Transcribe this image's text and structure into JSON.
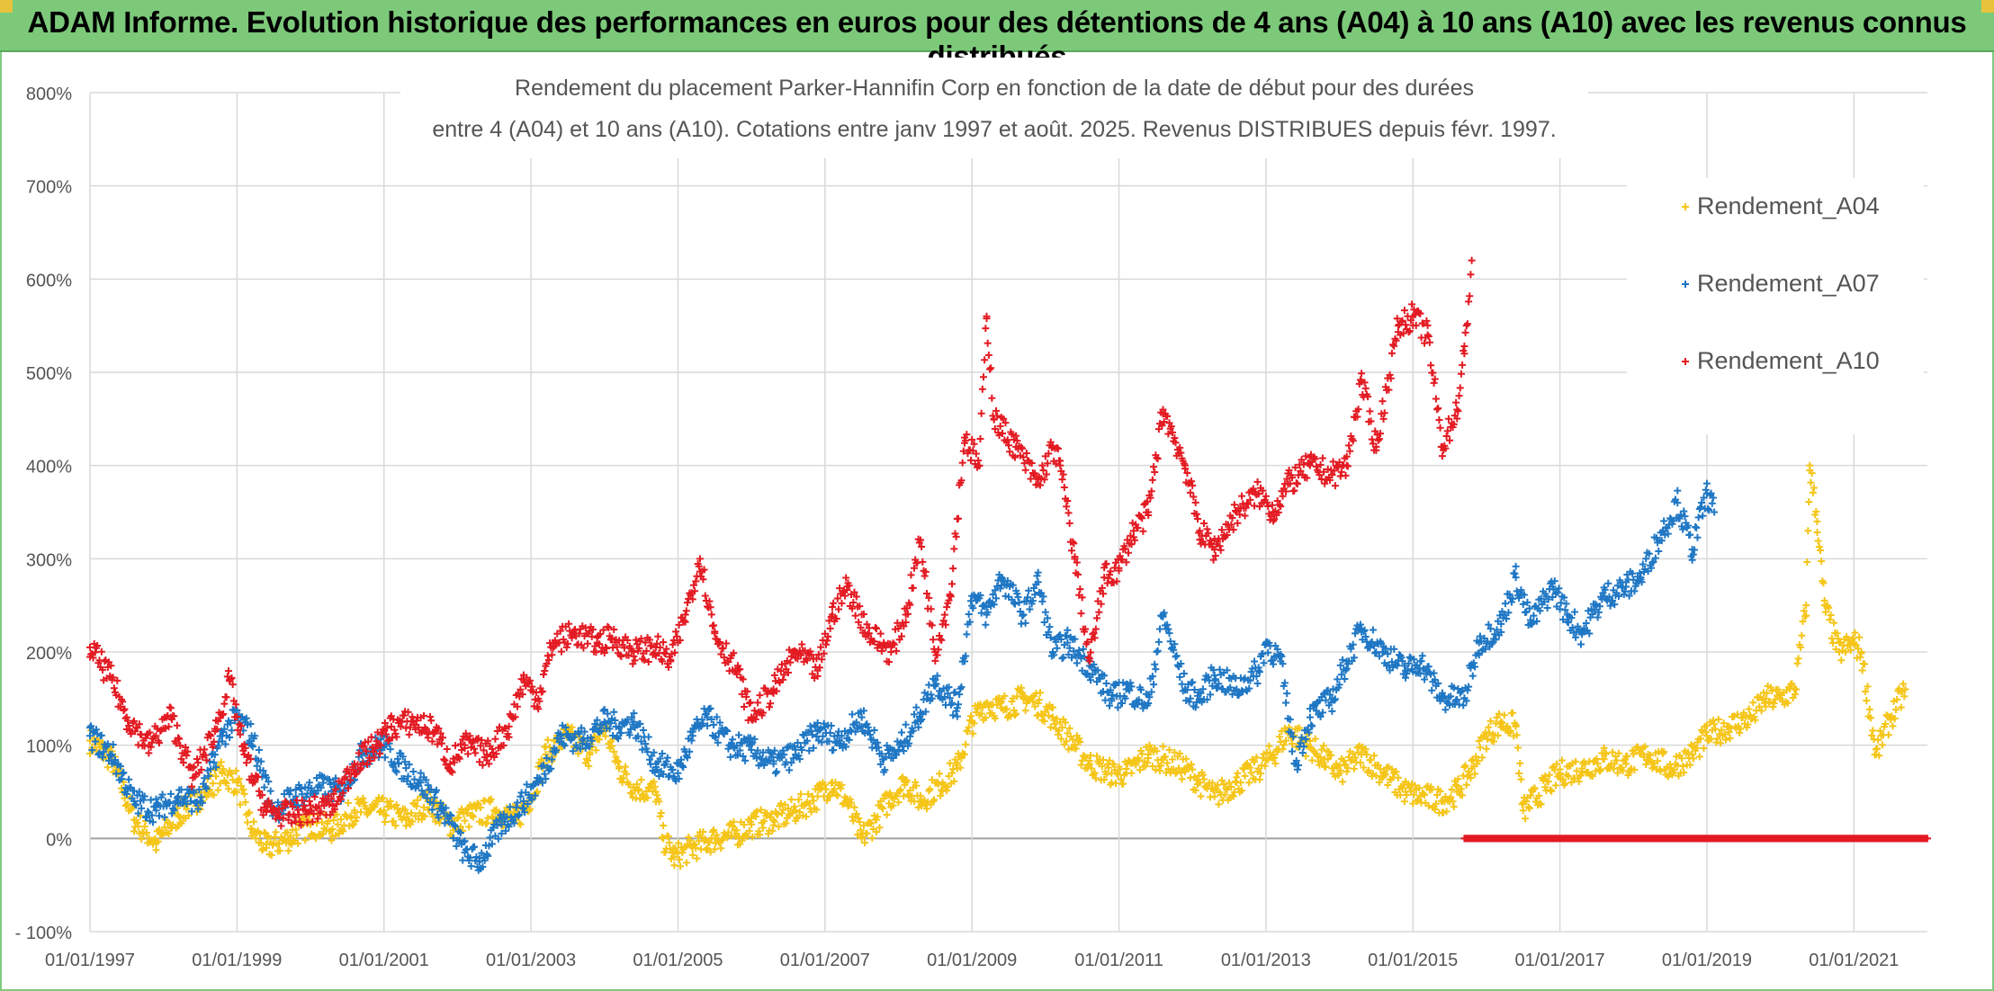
{
  "banner": {
    "title": "ADAM Informe. Evolution historique des performances en euros pour des détentions de 4 ans (A04) à 10 ans (A10) avec les revenus connus distribués"
  },
  "chart_data": {
    "type": "scatter",
    "title_line1": "Rendement du placement Parker-Hannifin Corp en fonction de la date de début pour des durées",
    "title_line2": "entre 4 (A04) et 10 ans (A10). Cotations entre janv 1997 et août. 2025. Revenus DISTRIBUES depuis févr. 1997.",
    "xlabel": "",
    "ylabel": "",
    "x_ticks": [
      "01/01/1997",
      "01/01/1999",
      "01/01/2001",
      "01/01/2003",
      "01/01/2005",
      "01/01/2007",
      "01/01/2009",
      "01/01/2011",
      "01/01/2013",
      "01/01/2015",
      "01/01/2017",
      "01/01/2019",
      "01/01/2021"
    ],
    "y_ticks": [
      "800%",
      "700%",
      "600%",
      "500%",
      "400%",
      "300%",
      "200%",
      "100%",
      "0%",
      "- 100%"
    ],
    "xlim": [
      1997.0,
      2022.0
    ],
    "ylim": [
      -100,
      800
    ],
    "grid": true,
    "legend_position": "top-right",
    "marker": "+",
    "series": [
      {
        "name": "Rendement_A04",
        "color": "#f5c518",
        "points": [
          [
            1997.0,
            105
          ],
          [
            1997.3,
            85
          ],
          [
            1997.6,
            20
          ],
          [
            1997.9,
            -5
          ],
          [
            1998.2,
            25
          ],
          [
            1998.5,
            45
          ],
          [
            1998.8,
            70
          ],
          [
            1999.0,
            60
          ],
          [
            1999.2,
            10
          ],
          [
            1999.4,
            -10
          ],
          [
            1999.7,
            0
          ],
          [
            2000.0,
            15
          ],
          [
            2000.3,
            10
          ],
          [
            2000.6,
            30
          ],
          [
            2001.0,
            30
          ],
          [
            2001.3,
            20
          ],
          [
            2001.6,
            40
          ],
          [
            2001.9,
            15
          ],
          [
            2002.2,
            25
          ],
          [
            2002.5,
            30
          ],
          [
            2002.8,
            20
          ],
          [
            2003.0,
            45
          ],
          [
            2003.2,
            90
          ],
          [
            2003.5,
            110
          ],
          [
            2003.8,
            90
          ],
          [
            2004.0,
            120
          ],
          [
            2004.2,
            75
          ],
          [
            2004.4,
            55
          ],
          [
            2004.7,
            50
          ],
          [
            2004.8,
            0
          ],
          [
            2004.95,
            -20
          ],
          [
            2005.2,
            -10
          ],
          [
            2005.5,
            0
          ],
          [
            2005.8,
            5
          ],
          [
            2006.0,
            15
          ],
          [
            2006.3,
            20
          ],
          [
            2006.6,
            30
          ],
          [
            2006.9,
            45
          ],
          [
            2007.1,
            60
          ],
          [
            2007.3,
            40
          ],
          [
            2007.5,
            0
          ],
          [
            2007.7,
            20
          ],
          [
            2007.9,
            45
          ],
          [
            2008.1,
            60
          ],
          [
            2008.3,
            40
          ],
          [
            2008.6,
            60
          ],
          [
            2008.8,
            75
          ],
          [
            2009.0,
            125
          ],
          [
            2009.2,
            145
          ],
          [
            2009.4,
            140
          ],
          [
            2009.7,
            150
          ],
          [
            2009.9,
            145
          ],
          [
            2010.1,
            130
          ],
          [
            2010.4,
            100
          ],
          [
            2010.6,
            80
          ],
          [
            2010.9,
            70
          ],
          [
            2011.1,
            70
          ],
          [
            2011.4,
            90
          ],
          [
            2011.6,
            85
          ],
          [
            2011.9,
            75
          ],
          [
            2012.1,
            60
          ],
          [
            2012.3,
            45
          ],
          [
            2012.6,
            60
          ],
          [
            2012.9,
            75
          ],
          [
            2013.1,
            90
          ],
          [
            2013.3,
            115
          ],
          [
            2013.5,
            105
          ],
          [
            2013.8,
            85
          ],
          [
            2014.0,
            70
          ],
          [
            2014.3,
            90
          ],
          [
            2014.6,
            70
          ],
          [
            2014.9,
            50
          ],
          [
            2015.1,
            45
          ],
          [
            2015.4,
            40
          ],
          [
            2015.6,
            50
          ],
          [
            2015.8,
            75
          ],
          [
            2016.0,
            110
          ],
          [
            2016.2,
            125
          ],
          [
            2016.4,
            120
          ],
          [
            2016.5,
            30
          ],
          [
            2016.8,
            55
          ],
          [
            2017.0,
            70
          ],
          [
            2017.3,
            75
          ],
          [
            2017.6,
            85
          ],
          [
            2017.9,
            80
          ],
          [
            2018.2,
            90
          ],
          [
            2018.5,
            75
          ],
          [
            2018.8,
            90
          ],
          [
            2019.0,
            110
          ],
          [
            2019.3,
            120
          ],
          [
            2019.6,
            130
          ],
          [
            2019.8,
            150
          ],
          [
            2020.0,
            150
          ],
          [
            2020.2,
            160
          ],
          [
            2020.35,
            250
          ],
          [
            2020.4,
            400
          ],
          [
            2020.5,
            340
          ],
          [
            2020.6,
            250
          ],
          [
            2020.8,
            200
          ],
          [
            2021.0,
            210
          ],
          [
            2021.1,
            200
          ],
          [
            2021.3,
            90
          ],
          [
            2021.5,
            130
          ],
          [
            2021.7,
            160
          ]
        ]
      },
      {
        "name": "Rendement_A07",
        "color": "#1f77c4",
        "points": [
          [
            1997.0,
            110
          ],
          [
            1997.3,
            90
          ],
          [
            1997.6,
            40
          ],
          [
            1997.9,
            30
          ],
          [
            1998.2,
            45
          ],
          [
            1998.5,
            40
          ],
          [
            1998.8,
            110
          ],
          [
            1999.0,
            130
          ],
          [
            1999.2,
            110
          ],
          [
            1999.5,
            30
          ],
          [
            1999.8,
            45
          ],
          [
            2000.1,
            55
          ],
          [
            2000.4,
            50
          ],
          [
            2000.7,
            90
          ],
          [
            2001.0,
            100
          ],
          [
            2001.2,
            80
          ],
          [
            2001.5,
            60
          ],
          [
            2001.8,
            30
          ],
          [
            2002.1,
            -15
          ],
          [
            2002.3,
            -25
          ],
          [
            2002.6,
            15
          ],
          [
            2002.9,
            40
          ],
          [
            2003.1,
            60
          ],
          [
            2003.4,
            110
          ],
          [
            2003.7,
            105
          ],
          [
            2004.0,
            125
          ],
          [
            2004.2,
            120
          ],
          [
            2004.4,
            125
          ],
          [
            2004.7,
            80
          ],
          [
            2005.0,
            70
          ],
          [
            2005.2,
            110
          ],
          [
            2005.4,
            130
          ],
          [
            2005.7,
            100
          ],
          [
            2006.0,
            95
          ],
          [
            2006.3,
            80
          ],
          [
            2006.6,
            90
          ],
          [
            2006.9,
            115
          ],
          [
            2007.2,
            105
          ],
          [
            2007.5,
            130
          ],
          [
            2007.8,
            85
          ],
          [
            2008.0,
            95
          ],
          [
            2008.3,
            135
          ],
          [
            2008.5,
            170
          ],
          [
            2008.8,
            140
          ],
          [
            2009.0,
            260
          ],
          [
            2009.2,
            240
          ],
          [
            2009.4,
            280
          ],
          [
            2009.7,
            240
          ],
          [
            2009.9,
            275
          ],
          [
            2010.1,
            200
          ],
          [
            2010.3,
            210
          ],
          [
            2010.6,
            185
          ],
          [
            2010.9,
            150
          ],
          [
            2011.1,
            160
          ],
          [
            2011.4,
            145
          ],
          [
            2011.6,
            240
          ],
          [
            2011.9,
            160
          ],
          [
            2012.1,
            150
          ],
          [
            2012.3,
            175
          ],
          [
            2012.6,
            160
          ],
          [
            2012.9,
            180
          ],
          [
            2013.0,
            210
          ],
          [
            2013.2,
            190
          ],
          [
            2013.4,
            80
          ],
          [
            2013.6,
            130
          ],
          [
            2013.9,
            150
          ],
          [
            2014.1,
            190
          ],
          [
            2014.3,
            225
          ],
          [
            2014.6,
            200
          ],
          [
            2014.9,
            180
          ],
          [
            2015.1,
            190
          ],
          [
            2015.4,
            150
          ],
          [
            2015.7,
            150
          ],
          [
            2015.9,
            210
          ],
          [
            2016.2,
            230
          ],
          [
            2016.4,
            280
          ],
          [
            2016.6,
            230
          ],
          [
            2016.9,
            270
          ],
          [
            2017.1,
            240
          ],
          [
            2017.3,
            220
          ],
          [
            2017.6,
            260
          ],
          [
            2017.9,
            270
          ],
          [
            2018.1,
            280
          ],
          [
            2018.4,
            330
          ],
          [
            2018.6,
            360
          ],
          [
            2018.8,
            310
          ],
          [
            2019.0,
            370
          ],
          [
            2019.1,
            350
          ]
        ]
      },
      {
        "name": "Rendement_A10",
        "color": "#e31b23",
        "points": [
          [
            1997.0,
            205
          ],
          [
            1997.3,
            170
          ],
          [
            1997.5,
            130
          ],
          [
            1997.8,
            100
          ],
          [
            1998.1,
            130
          ],
          [
            1998.4,
            65
          ],
          [
            1998.7,
            115
          ],
          [
            1998.9,
            170
          ],
          [
            1999.1,
            90
          ],
          [
            1999.4,
            30
          ],
          [
            1999.7,
            25
          ],
          [
            2000.0,
            30
          ],
          [
            2000.3,
            35
          ],
          [
            2000.6,
            80
          ],
          [
            2000.9,
            100
          ],
          [
            2001.1,
            120
          ],
          [
            2001.4,
            125
          ],
          [
            2001.7,
            115
          ],
          [
            2001.9,
            80
          ],
          [
            2002.1,
            100
          ],
          [
            2002.4,
            90
          ],
          [
            2002.7,
            120
          ],
          [
            2002.9,
            170
          ],
          [
            2003.1,
            150
          ],
          [
            2003.3,
            210
          ],
          [
            2003.6,
            220
          ],
          [
            2003.9,
            210
          ],
          [
            2004.1,
            215
          ],
          [
            2004.4,
            200
          ],
          [
            2004.7,
            205
          ],
          [
            2004.9,
            190
          ],
          [
            2005.1,
            240
          ],
          [
            2005.3,
            300
          ],
          [
            2005.5,
            220
          ],
          [
            2005.8,
            180
          ],
          [
            2006.0,
            130
          ],
          [
            2006.3,
            160
          ],
          [
            2006.6,
            200
          ],
          [
            2006.9,
            180
          ],
          [
            2007.1,
            240
          ],
          [
            2007.3,
            270
          ],
          [
            2007.6,
            220
          ],
          [
            2007.9,
            200
          ],
          [
            2008.1,
            240
          ],
          [
            2008.3,
            320
          ],
          [
            2008.5,
            200
          ],
          [
            2008.7,
            260
          ],
          [
            2008.9,
            430
          ],
          [
            2009.1,
            400
          ],
          [
            2009.2,
            560
          ],
          [
            2009.3,
            450
          ],
          [
            2009.6,
            420
          ],
          [
            2009.9,
            380
          ],
          [
            2010.1,
            420
          ],
          [
            2010.2,
            400
          ],
          [
            2010.4,
            300
          ],
          [
            2010.6,
            190
          ],
          [
            2010.8,
            280
          ],
          [
            2011.0,
            290
          ],
          [
            2011.2,
            330
          ],
          [
            2011.4,
            350
          ],
          [
            2011.6,
            460
          ],
          [
            2011.9,
            400
          ],
          [
            2012.1,
            330
          ],
          [
            2012.3,
            310
          ],
          [
            2012.6,
            350
          ],
          [
            2012.9,
            370
          ],
          [
            2013.1,
            350
          ],
          [
            2013.3,
            380
          ],
          [
            2013.6,
            400
          ],
          [
            2013.9,
            390
          ],
          [
            2014.1,
            400
          ],
          [
            2014.3,
            490
          ],
          [
            2014.5,
            420
          ],
          [
            2014.8,
            550
          ],
          [
            2015.0,
            560
          ],
          [
            2015.2,
            540
          ],
          [
            2015.4,
            420
          ],
          [
            2015.6,
            460
          ],
          [
            2015.7,
            520
          ],
          [
            2015.8,
            620
          ]
        ]
      }
    ],
    "zero_band": {
      "series": "Rendement_A10",
      "color": "#e31b23",
      "x_from": 2015.7,
      "x_to": 2022.0,
      "y": 0
    }
  }
}
